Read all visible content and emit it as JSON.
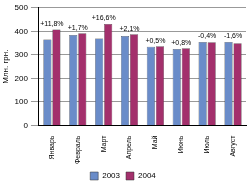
{
  "chart_data": {
    "type": "bar",
    "y_label": "Млн. грн.",
    "categories": [
      "Январь",
      "Февраль",
      "Март",
      "Апрель",
      "Май",
      "Июнь",
      "Июль",
      "Август"
    ],
    "series": [
      {
        "name": "2003",
        "color": "#6a8cc9",
        "values": [
          365,
          385,
          370,
          380,
          335,
          325,
          355,
          355
        ]
      },
      {
        "name": "2004",
        "color": "#a3306c",
        "values": [
          408,
          392,
          431,
          388,
          337,
          328,
          354,
          349
        ]
      }
    ],
    "annotations": [
      "+11,8%",
      "+1,7%",
      "+16,6%",
      "+2,1%",
      "+0,5%",
      "+0,8%",
      "-0,4%",
      "-1,6%"
    ],
    "ylim": [
      0,
      500
    ],
    "yticks": [
      0,
      100,
      200,
      300,
      400,
      500
    ],
    "grid": true,
    "legend": "bottom"
  }
}
